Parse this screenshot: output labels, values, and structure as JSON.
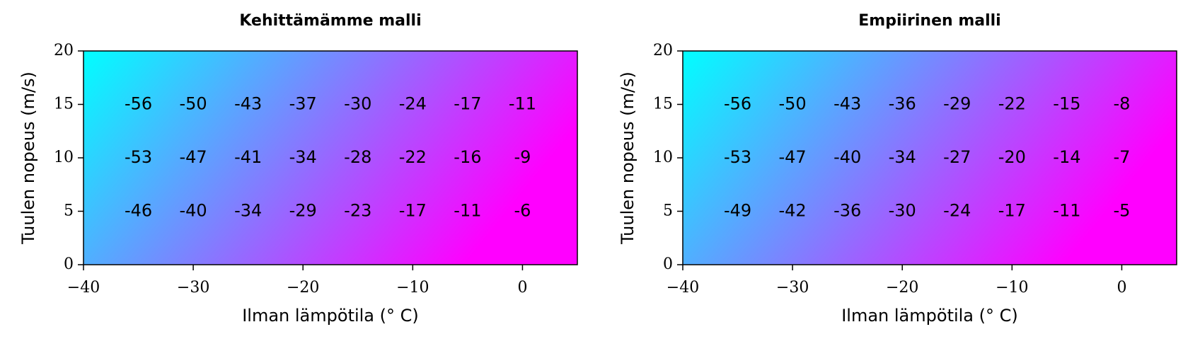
{
  "chart_data": [
    {
      "type": "heatmap",
      "title": "Kehittämämme malli",
      "xlabel": "Ilman lämpötila (° C)",
      "ylabel": "Tuulen nopeus (m/s)",
      "x": [
        -35,
        -30,
        -25,
        -20,
        -15,
        -10,
        -5,
        0
      ],
      "y": [
        15,
        10,
        5
      ],
      "values": [
        [
          -56,
          -50,
          -43,
          -37,
          -30,
          -24,
          -17,
          -11
        ],
        [
          -53,
          -47,
          -41,
          -34,
          -28,
          -22,
          -16,
          -9
        ],
        [
          -46,
          -40,
          -34,
          -29,
          -23,
          -17,
          -11,
          -6
        ]
      ],
      "colormap": [
        "#00ffff",
        "#ff00ff"
      ],
      "xlim": [
        -40,
        5
      ],
      "ylim": [
        0,
        20
      ],
      "xticks": [
        {
          "value": -40,
          "label": "−40"
        },
        {
          "value": -30,
          "label": "−30"
        },
        {
          "value": -20,
          "label": "−20"
        },
        {
          "value": -10,
          "label": "−10"
        },
        0
      ],
      "yticks": [
        0,
        5,
        10,
        15,
        20
      ]
    },
    {
      "type": "heatmap",
      "title": "Empiirinen malli",
      "xlabel": "Ilman lämpötila (° C)",
      "ylabel": "Tuulen nopeus (m/s)",
      "x": [
        -35,
        -30,
        -25,
        -20,
        -15,
        -10,
        -5,
        0
      ],
      "y": [
        15,
        10,
        5
      ],
      "values": [
        [
          -56,
          -50,
          -43,
          -36,
          -29,
          -22,
          -15,
          -8
        ],
        [
          -53,
          -47,
          -40,
          -34,
          -27,
          -20,
          -14,
          -7
        ],
        [
          -49,
          -42,
          -36,
          -30,
          -24,
          -17,
          -11,
          -5
        ]
      ],
      "colormap": [
        "#00ffff",
        "#ff00ff"
      ],
      "xlim": [
        -40,
        5
      ],
      "ylim": [
        0,
        20
      ],
      "xticks": [
        {
          "value": -40,
          "label": "−40"
        },
        {
          "value": -30,
          "label": "−30"
        },
        {
          "value": -20,
          "label": "−20"
        },
        {
          "value": -10,
          "label": "−10"
        },
        0
      ],
      "yticks": [
        0,
        5,
        10,
        15,
        20
      ]
    }
  ]
}
